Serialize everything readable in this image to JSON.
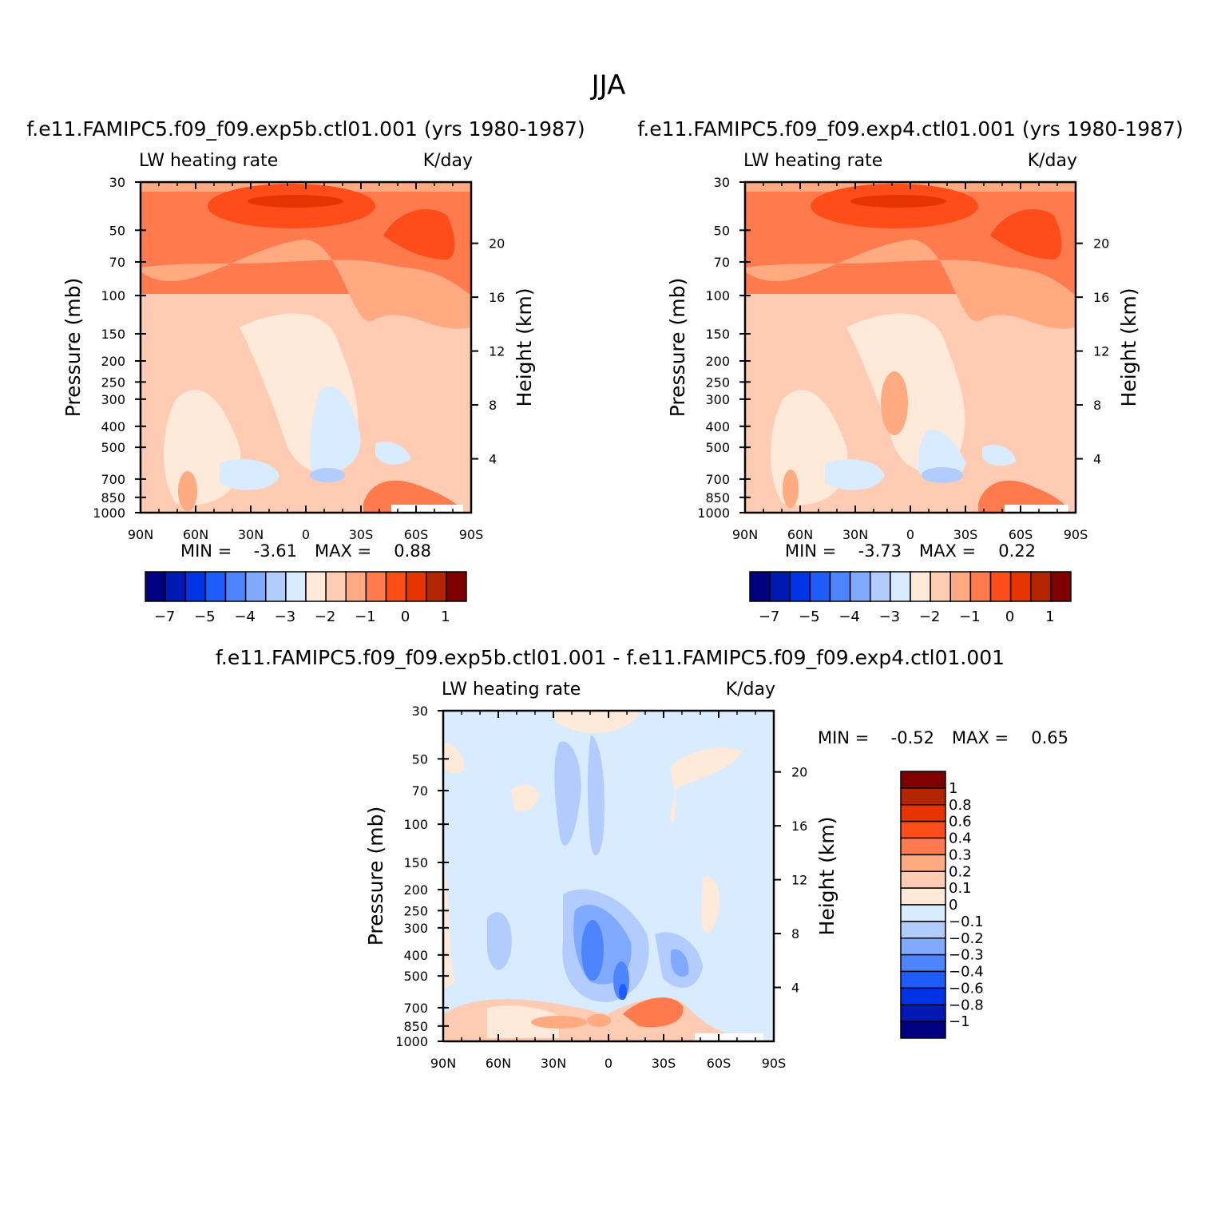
{
  "figure_title": "JJA",
  "chart_data": [
    {
      "type": "heatmap",
      "id": "p1",
      "title": "f.e11.FAMIPC5.f09_f09.exp5b.ctl01.001 (yrs 1980-1987)",
      "left_label": "LW heating rate",
      "right_label": "K/day",
      "ylabel": "Pressure (mb)",
      "y2label": "Height (km)",
      "x_ticks": [
        "90N",
        "60N",
        "30N",
        "0",
        "30S",
        "60S",
        "90S"
      ],
      "y_ticks": [
        "30",
        "50",
        "70",
        "100",
        "150",
        "200",
        "250",
        "300",
        "400",
        "500",
        "700",
        "850",
        "1000"
      ],
      "y2_ticks": [
        "20",
        "16",
        "12",
        "8",
        "4"
      ],
      "stats": {
        "min_label": "MIN =",
        "min": "-3.61",
        "max_label": "MAX =",
        "max": "0.88"
      },
      "colorbar": {
        "orientation": "horizontal",
        "colors": [
          "#000080",
          "#0019b3",
          "#0033e6",
          "#1f5cff",
          "#4d85ff",
          "#80aaff",
          "#b3ccff",
          "#d9ebff",
          "#ffe9d9",
          "#ffccb3",
          "#ffaa80",
          "#ff7a4d",
          "#ff4d1a",
          "#e63300",
          "#b32400",
          "#800000"
        ],
        "labels": [
          "-7",
          "-5",
          "-4",
          "-3",
          "-2",
          "-1",
          "0",
          "1"
        ]
      }
    },
    {
      "type": "heatmap",
      "id": "p2",
      "title": "f.e11.FAMIPC5.f09_f09.exp4.ctl01.001 (yrs 1980-1987)",
      "left_label": "LW heating rate",
      "right_label": "K/day",
      "ylabel": "Pressure (mb)",
      "y2label": "Height (km)",
      "x_ticks": [
        "90N",
        "60N",
        "30N",
        "0",
        "30S",
        "60S",
        "90S"
      ],
      "y_ticks": [
        "30",
        "50",
        "70",
        "100",
        "150",
        "200",
        "250",
        "300",
        "400",
        "500",
        "700",
        "850",
        "1000"
      ],
      "y2_ticks": [
        "20",
        "16",
        "12",
        "8",
        "4"
      ],
      "stats": {
        "min_label": "MIN =",
        "min": "-3.73",
        "max_label": "MAX =",
        "max": "0.22"
      },
      "colorbar": {
        "orientation": "horizontal",
        "colors": [
          "#000080",
          "#0019b3",
          "#0033e6",
          "#1f5cff",
          "#4d85ff",
          "#80aaff",
          "#b3ccff",
          "#d9ebff",
          "#ffe9d9",
          "#ffccb3",
          "#ffaa80",
          "#ff7a4d",
          "#ff4d1a",
          "#e63300",
          "#b32400",
          "#800000"
        ],
        "labels": [
          "-7",
          "-5",
          "-4",
          "-3",
          "-2",
          "-1",
          "0",
          "1"
        ]
      }
    },
    {
      "type": "heatmap",
      "id": "p3",
      "title": "f.e11.FAMIPC5.f09_f09.exp5b.ctl01.001 - f.e11.FAMIPC5.f09_f09.exp4.ctl01.001",
      "left_label": "LW heating rate",
      "right_label": "K/day",
      "ylabel": "Pressure (mb)",
      "y2label": "Height (km)",
      "x_ticks": [
        "90N",
        "60N",
        "30N",
        "0",
        "30S",
        "60S",
        "90S"
      ],
      "y_ticks": [
        "30",
        "50",
        "70",
        "100",
        "150",
        "200",
        "250",
        "300",
        "400",
        "500",
        "700",
        "850",
        "1000"
      ],
      "y2_ticks": [
        "20",
        "16",
        "12",
        "8",
        "4"
      ],
      "stats": {
        "min_label": "MIN =",
        "min": "-0.52",
        "max_label": "MAX =",
        "max": "0.65"
      },
      "colorbar": {
        "orientation": "vertical",
        "colors": [
          "#800000",
          "#b32400",
          "#e63300",
          "#ff4d1a",
          "#ff7a4d",
          "#ffaa80",
          "#ffccb3",
          "#ffe9d9",
          "#d9ebff",
          "#b3ccff",
          "#80aaff",
          "#4d85ff",
          "#1f5cff",
          "#0033e6",
          "#0019b3",
          "#000080"
        ],
        "labels": [
          "1",
          "0.8",
          "0.6",
          "0.4",
          "0.3",
          "0.2",
          "0.1",
          "0",
          "-0.1",
          "-0.2",
          "-0.3",
          "-0.4",
          "-0.6",
          "-0.8",
          "-1"
        ]
      }
    }
  ]
}
